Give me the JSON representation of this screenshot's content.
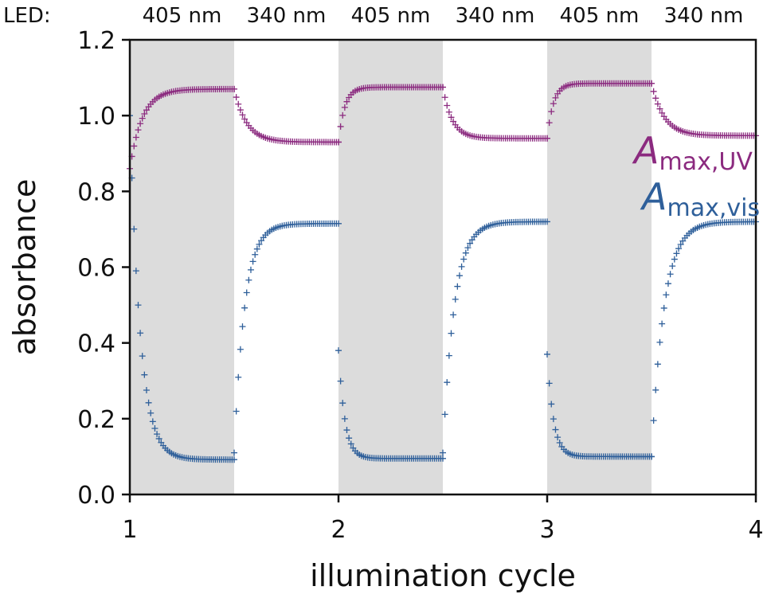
{
  "chart_data": {
    "type": "scatter",
    "title": "",
    "xlabel": "illumination cycle",
    "ylabel": "absorbance",
    "xlim": [
      1,
      4
    ],
    "ylim": [
      0,
      1.2
    ],
    "xticks": [
      1,
      2,
      3,
      4
    ],
    "xtick_labels": [
      "1",
      "2",
      "3",
      "4"
    ],
    "yticks": [
      0.0,
      0.2,
      0.4,
      0.6,
      0.8,
      1.0,
      1.2
    ],
    "ytick_labels": [
      "0.0",
      "0.2",
      "0.4",
      "0.6",
      "0.8",
      "1.0",
      "1.2"
    ],
    "grid": false,
    "led_prefix": "LED:",
    "led_labels": [
      "405 nm",
      "340 nm",
      "405 nm",
      "340 nm",
      "405 nm",
      "340 nm"
    ],
    "shaded_intervals": [
      [
        1.0,
        1.5
      ],
      [
        2.0,
        2.5
      ],
      [
        3.0,
        3.5
      ]
    ],
    "series": [
      {
        "name": "A",
        "name_sub": "max,UV",
        "color": "#8b2a7f",
        "marker": "plus",
        "segments": [
          {
            "x_start": 1.0,
            "x_end": 1.5,
            "y_start": 0.86,
            "y_end": 1.07,
            "tau": 0.06
          },
          {
            "x_start": 1.5,
            "x_end": 2.0,
            "y_start": 1.07,
            "y_end": 0.93,
            "tau": 0.06
          },
          {
            "x_start": 2.0,
            "x_end": 2.5,
            "y_start": 0.93,
            "y_end": 1.075,
            "tau": 0.03
          },
          {
            "x_start": 2.5,
            "x_end": 3.0,
            "y_start": 1.075,
            "y_end": 0.94,
            "tau": 0.045
          },
          {
            "x_start": 3.0,
            "x_end": 3.5,
            "y_start": 0.94,
            "y_end": 1.085,
            "tau": 0.03
          },
          {
            "x_start": 3.5,
            "x_end": 4.0,
            "y_start": 1.085,
            "y_end": 0.947,
            "tau": 0.06
          }
        ]
      },
      {
        "name": "A",
        "name_sub": "max,vis",
        "color": "#2e5f9a",
        "marker": "plus",
        "segments": [
          {
            "x_start": 1.0,
            "x_end": 1.5,
            "y_start": 1.0,
            "y_end": 0.092,
            "tau": 0.05
          },
          {
            "x_start": 1.5,
            "x_end": 2.0,
            "y_start": 0.11,
            "y_end": 0.715,
            "tau": 0.05
          },
          {
            "x_start": 2.0,
            "x_end": 2.5,
            "y_start": 0.38,
            "y_end": 0.095,
            "tau": 0.03
          },
          {
            "x_start": 2.5,
            "x_end": 3.0,
            "y_start": 0.11,
            "y_end": 0.72,
            "tau": 0.055
          },
          {
            "x_start": 3.0,
            "x_end": 3.5,
            "y_start": 0.37,
            "y_end": 0.1,
            "tau": 0.03
          },
          {
            "x_start": 3.5,
            "x_end": 4.0,
            "y_start": 0.1,
            "y_end": 0.72,
            "tau": 0.06
          }
        ]
      }
    ]
  },
  "colors": {
    "shade": "#dcdcdc",
    "axis": "#111111",
    "uv": "#8b2a7f",
    "vis": "#2e5f9a"
  }
}
